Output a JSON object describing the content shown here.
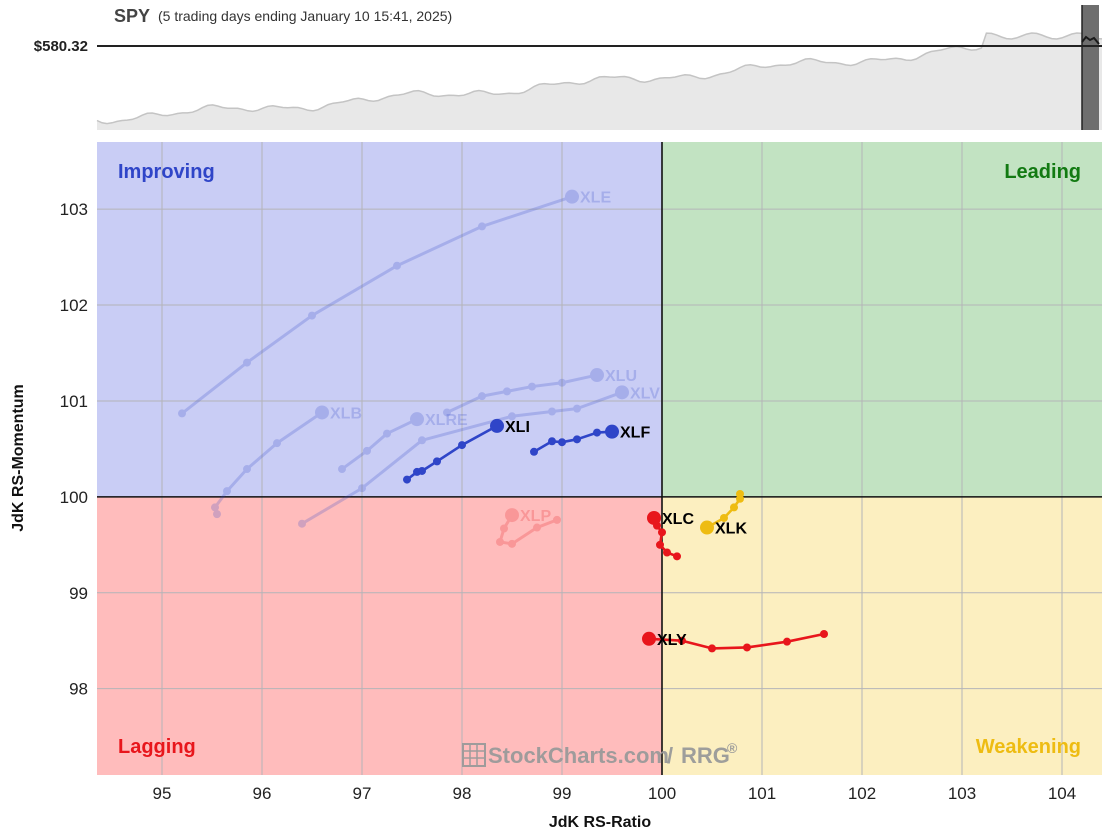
{
  "header": {
    "symbol": "SPY",
    "subtitle": "(5 trading days ending January 10 15:41, 2025)",
    "price_label": "$580.32"
  },
  "watermark": {
    "brand": "StockCharts.com",
    "slash": "/",
    "product": "RRG",
    "reg": "®",
    "icon": "chart-grid-icon"
  },
  "colors": {
    "improving_bg": "#c9cdf5",
    "leading_bg": "#c2e3c2",
    "lagging_bg": "#ffbcbc",
    "weakening_bg": "#fcefc0",
    "improving_text": "#2f45c8",
    "leading_text": "#127a12",
    "lagging_text": "#e8161c",
    "weakening_text": "#eebc12",
    "sparkline_fill": "#e8e8e8",
    "sparkline_line": "#c4c4c4"
  },
  "chart_data": {
    "type": "scatter",
    "subtype": "relative-rotation-graph",
    "xlabel": "JdK RS-Ratio",
    "ylabel": "JdK RS-Momentum",
    "xlim": [
      94.35,
      104.4
    ],
    "ylim": [
      97.1,
      103.7
    ],
    "xticks": [
      95,
      96,
      97,
      98,
      99,
      100,
      101,
      102,
      103,
      104
    ],
    "yticks": [
      98,
      99,
      100,
      101,
      102,
      103
    ],
    "center": [
      100,
      100
    ],
    "grid": true,
    "quadrants": {
      "improving": "Improving",
      "leading": "Leading",
      "lagging": "Lagging",
      "weakening": "Weakening"
    },
    "series": [
      {
        "name": "XLE",
        "color": "#2f45c8",
        "faded": true,
        "points": [
          [
            95.2,
            100.87
          ],
          [
            95.85,
            101.4
          ],
          [
            96.5,
            101.89
          ],
          [
            97.35,
            102.41
          ],
          [
            98.2,
            102.82
          ],
          [
            99.1,
            103.13
          ]
        ]
      },
      {
        "name": "XLU",
        "color": "#2f45c8",
        "faded": true,
        "points": [
          [
            97.85,
            100.88
          ],
          [
            98.2,
            101.05
          ],
          [
            98.45,
            101.1
          ],
          [
            98.7,
            101.15
          ],
          [
            99.0,
            101.19
          ],
          [
            99.35,
            101.27
          ]
        ]
      },
      {
        "name": "XLV",
        "color": "#2f45c8",
        "faded": true,
        "points": [
          [
            96.4,
            99.72
          ],
          [
            97.0,
            100.09
          ],
          [
            97.6,
            100.59
          ],
          [
            98.5,
            100.84
          ],
          [
            98.9,
            100.89
          ],
          [
            99.15,
            100.92
          ],
          [
            99.6,
            101.09
          ]
        ]
      },
      {
        "name": "XLB",
        "color": "#2f45c8",
        "faded": true,
        "points": [
          [
            95.55,
            99.82
          ],
          [
            95.53,
            99.89
          ],
          [
            95.65,
            100.06
          ],
          [
            95.85,
            100.29
          ],
          [
            96.15,
            100.56
          ],
          [
            96.6,
            100.88
          ]
        ]
      },
      {
        "name": "XLRE",
        "color": "#2f45c8",
        "faded": true,
        "points": [
          [
            96.8,
            100.29
          ],
          [
            97.05,
            100.48
          ],
          [
            97.25,
            100.66
          ],
          [
            97.55,
            100.81
          ]
        ]
      },
      {
        "name": "XLI",
        "color": "#2f45c8",
        "faded": false,
        "points": [
          [
            97.45,
            100.18
          ],
          [
            97.55,
            100.26
          ],
          [
            97.6,
            100.27
          ],
          [
            97.75,
            100.37
          ],
          [
            98.0,
            100.54
          ],
          [
            98.35,
            100.74
          ]
        ]
      },
      {
        "name": "XLF",
        "color": "#2f45c8",
        "faded": false,
        "points": [
          [
            98.72,
            100.47
          ],
          [
            98.9,
            100.58
          ],
          [
            99.0,
            100.57
          ],
          [
            99.15,
            100.6
          ],
          [
            99.35,
            100.67
          ],
          [
            99.5,
            100.68
          ]
        ]
      },
      {
        "name": "XLP",
        "color": "#e8161c",
        "faded": true,
        "points": [
          [
            98.95,
            99.76
          ],
          [
            98.75,
            99.68
          ],
          [
            98.5,
            99.51
          ],
          [
            98.38,
            99.53
          ],
          [
            98.42,
            99.67
          ],
          [
            98.5,
            99.81
          ]
        ]
      },
      {
        "name": "XLC",
        "color": "#e8161c",
        "faded": false,
        "points": [
          [
            100.15,
            99.38
          ],
          [
            100.05,
            99.42
          ],
          [
            99.98,
            99.5
          ],
          [
            100.0,
            99.63
          ],
          [
            99.95,
            99.7
          ],
          [
            99.92,
            99.78
          ]
        ]
      },
      {
        "name": "XLY",
        "color": "#e8161c",
        "faded": false,
        "points": [
          [
            101.62,
            98.57
          ],
          [
            101.25,
            98.49
          ],
          [
            100.85,
            98.43
          ],
          [
            100.5,
            98.42
          ],
          [
            100.2,
            98.5
          ],
          [
            99.87,
            98.52
          ]
        ]
      },
      {
        "name": "XLK",
        "color": "#eebc12",
        "faded": false,
        "points": [
          [
            100.78,
            100.03
          ],
          [
            100.78,
            99.98
          ],
          [
            100.72,
            99.89
          ],
          [
            100.62,
            99.78
          ],
          [
            100.45,
            99.68
          ]
        ]
      }
    ]
  }
}
